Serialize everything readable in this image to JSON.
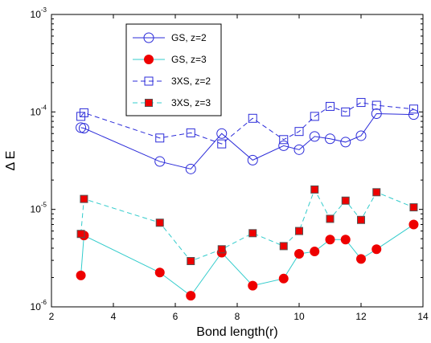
{
  "chart_data": {
    "type": "line",
    "xlabel": "Bond length(r)",
    "ylabel": "Δ E",
    "xlim": [
      2,
      14
    ],
    "ylim": [
      1e-06,
      0.001
    ],
    "yscale": "log",
    "grid": false,
    "legend_placement": "top-left",
    "x_ticks": [
      "2",
      "4",
      "6",
      "8",
      "10",
      "12",
      "14"
    ],
    "y_ticks": [
      {
        "base": "10",
        "exp": "-6",
        "value": 1e-06
      },
      {
        "base": "10",
        "exp": "-5",
        "value": 1e-05
      },
      {
        "base": "10",
        "exp": "-4",
        "value": 0.0001
      },
      {
        "base": "10",
        "exp": "-3",
        "value": 0.001
      }
    ],
    "series": [
      {
        "name": "GS, z=2",
        "color": "#2b2bd9",
        "line": "solid",
        "marker": "circle-open",
        "x": [
          2.95,
          3.05,
          5.5,
          6.5,
          7.5,
          8.5,
          9.5,
          10.0,
          10.5,
          11.0,
          11.5,
          12.0,
          12.5,
          13.7
        ],
        "y": [
          6.9e-05,
          6.8e-05,
          3.1e-05,
          2.6e-05,
          6e-05,
          3.2e-05,
          4.5e-05,
          4.1e-05,
          5.6e-05,
          5.3e-05,
          4.9e-05,
          5.7e-05,
          9.6e-05,
          9.4e-05
        ]
      },
      {
        "name": "GS, z=3",
        "color": "#33cccc",
        "line": "solid",
        "marker": "circle-filled",
        "marker_fill": "#ee0000",
        "x": [
          2.95,
          3.05,
          5.5,
          6.5,
          7.5,
          8.5,
          9.5,
          10.0,
          10.5,
          11.0,
          11.5,
          12.0,
          12.5,
          13.7
        ],
        "y": [
          2.1e-06,
          5.4e-06,
          2.25e-06,
          1.3e-06,
          3.6e-06,
          1.65e-06,
          1.95e-06,
          3.5e-06,
          3.7e-06,
          4.9e-06,
          4.9e-06,
          3.1e-06,
          3.9e-06,
          7e-06
        ]
      },
      {
        "name": "3XS, z=2",
        "color": "#2b2bd9",
        "line": "dashed",
        "marker": "square-open",
        "x": [
          2.95,
          3.05,
          5.5,
          6.5,
          7.5,
          8.5,
          9.5,
          10.0,
          10.5,
          11.0,
          11.5,
          12.0,
          12.5,
          13.7
        ],
        "y": [
          9e-05,
          9.8e-05,
          5.4e-05,
          6.1e-05,
          4.7e-05,
          8.6e-05,
          5.2e-05,
          6.3e-05,
          9e-05,
          0.000114,
          0.0001,
          0.000125,
          0.000117,
          0.000107
        ]
      },
      {
        "name": "3XS, z=3",
        "color": "#33cccc",
        "line": "dashed",
        "marker": "square-filled",
        "marker_fill": "#ee0000",
        "x": [
          2.95,
          3.05,
          5.5,
          6.5,
          7.5,
          8.5,
          9.5,
          10.0,
          10.5,
          11.0,
          11.5,
          12.0,
          12.5,
          13.7
        ],
        "y": [
          5.6e-06,
          1.28e-05,
          7.3e-06,
          2.95e-06,
          3.9e-06,
          5.7e-06,
          4.2e-06,
          6e-06,
          1.6e-05,
          8e-06,
          1.23e-05,
          7.8e-06,
          1.5e-05,
          1.05e-05
        ]
      }
    ]
  }
}
